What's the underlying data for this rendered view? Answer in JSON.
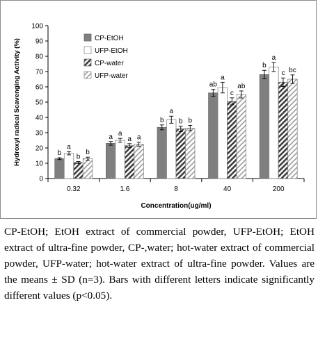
{
  "chart_data": {
    "type": "bar",
    "categories": [
      "0.32",
      "1.6",
      "8",
      "40",
      "200"
    ],
    "series": [
      {
        "name": "CP-EtOH",
        "style": "solid-gray",
        "color": "#7f7f7f",
        "values": [
          13,
          23,
          33.5,
          56,
          68
        ],
        "errors": [
          0.6,
          1.2,
          1.6,
          2.3,
          2.8
        ],
        "letters": [
          "b",
          "a",
          "b",
          "ab",
          "b"
        ]
      },
      {
        "name": "UFP-EtOH",
        "style": "white",
        "color": "#ffffff",
        "values": [
          16.5,
          25,
          38.5,
          59.5,
          73
        ],
        "errors": [
          1.0,
          1.3,
          2.3,
          3.5,
          3.0
        ],
        "letters": [
          "a",
          "a",
          "a",
          "a",
          "a"
        ]
      },
      {
        "name": "CP-water",
        "style": "diagonal-dark",
        "color": "#404040",
        "values": [
          10.5,
          21.5,
          32.5,
          50.5,
          63
        ],
        "errors": [
          0.6,
          1.3,
          1.8,
          2.3,
          2.8
        ],
        "letters": [
          "b",
          "a",
          "b",
          "c",
          "c"
        ]
      },
      {
        "name": "UFP-water",
        "style": "diagonal-light",
        "color": "#9a9a9a",
        "values": [
          13,
          22.5,
          33,
          55,
          65
        ],
        "errors": [
          1.0,
          1.3,
          1.8,
          2.3,
          2.8
        ],
        "letters": [
          "b",
          "a",
          "b",
          "ab",
          "bc"
        ]
      }
    ],
    "title": "",
    "xlabel": "Concentration(ug/ml)",
    "ylabel": "Hydroxyl radical Scavenging Activity (%)",
    "ylim": [
      0,
      100
    ],
    "yticks": [
      "0",
      "10",
      "20",
      "30",
      "40",
      "50",
      "60",
      "70",
      "80",
      "90",
      "100"
    ],
    "grid": false,
    "legend_position": "top-left"
  },
  "caption": {
    "text": "CP-EtOH; EtOH extract of commercial powder, UFP-EtOH; EtOH extract of ultra-fine powder, CP-,water; hot-water extract of commercial powder, UFP-water; hot-water extract of ultra-fine powder. Values are the means ± SD (n=3). Bars with different letters indicate significantly different values (p<0.05)."
  }
}
